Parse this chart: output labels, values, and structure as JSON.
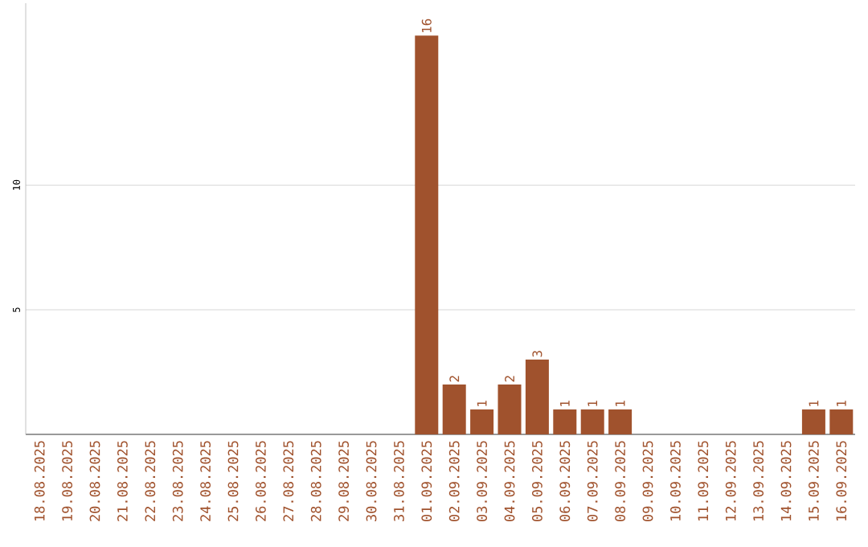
{
  "chart_data": {
    "type": "bar",
    "categories": [
      "18.08.2025",
      "19.08.2025",
      "20.08.2025",
      "21.08.2025",
      "22.08.2025",
      "23.08.2025",
      "24.08.2025",
      "25.08.2025",
      "26.08.2025",
      "27.08.2025",
      "28.08.2025",
      "29.08.2025",
      "30.08.2025",
      "31.08.2025",
      "01.09.2025",
      "02.09.2025",
      "03.09.2025",
      "04.09.2025",
      "05.09.2025",
      "06.09.2025",
      "07.09.2025",
      "08.09.2025",
      "09.09.2025",
      "10.09.2025",
      "11.09.2025",
      "12.09.2025",
      "13.09.2025",
      "14.09.2025",
      "15.09.2025",
      "16.09.2025"
    ],
    "values": [
      0,
      0,
      0,
      0,
      0,
      0,
      0,
      0,
      0,
      0,
      0,
      0,
      0,
      0,
      16,
      2,
      1,
      2,
      3,
      1,
      1,
      1,
      0,
      0,
      0,
      0,
      0,
      0,
      1,
      1
    ],
    "value_labels": [
      null,
      null,
      null,
      null,
      null,
      null,
      null,
      null,
      null,
      null,
      null,
      null,
      null,
      null,
      "16",
      "2",
      "1",
      "2",
      "3",
      "1",
      "1",
      "1",
      null,
      null,
      null,
      null,
      null,
      null,
      "1",
      "1"
    ],
    "color": "#a0522d",
    "ylim": [
      0,
      17.3
    ],
    "yticks": [
      5,
      10
    ],
    "grid": "y"
  }
}
